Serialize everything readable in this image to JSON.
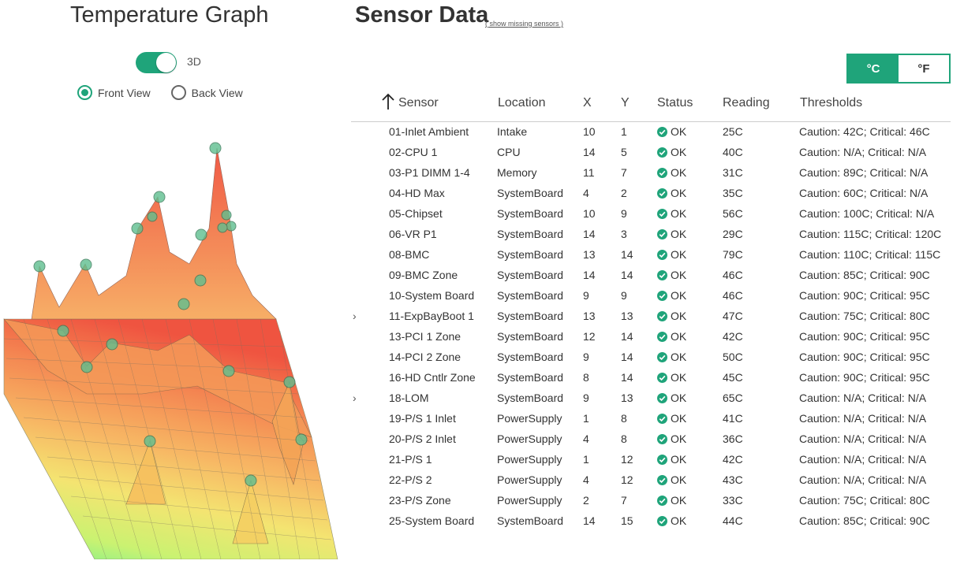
{
  "graph": {
    "title": "Temperature Graph",
    "toggle_label": "3D",
    "toggle_on": true,
    "radio_front": "Front View",
    "radio_back": "Back View",
    "selected_view": "Front View"
  },
  "sensor_panel": {
    "title": "Sensor Data",
    "missing_link": "( show missing sensors )",
    "unit_celsius": "°C",
    "unit_fahrenheit": "°F",
    "active_unit": "°C"
  },
  "table": {
    "headers": {
      "sensor": "Sensor",
      "location": "Location",
      "x": "X",
      "y": "Y",
      "status": "Status",
      "reading": "Reading",
      "thresholds": "Thresholds"
    },
    "sort_column": "Sensor",
    "sort_direction": "ascending",
    "rows": [
      {
        "sensor": "01-Inlet Ambient",
        "location": "Intake",
        "x": "10",
        "y": "1",
        "status": "OK",
        "reading": "25C",
        "thresholds": "Caution: 42C; Critical: 46C"
      },
      {
        "sensor": "02-CPU 1",
        "location": "CPU",
        "x": "14",
        "y": "5",
        "status": "OK",
        "reading": "40C",
        "thresholds": "Caution: N/A; Critical: N/A"
      },
      {
        "sensor": "03-P1 DIMM 1-4",
        "location": "Memory",
        "x": "11",
        "y": "7",
        "status": "OK",
        "reading": "31C",
        "thresholds": "Caution: 89C; Critical: N/A"
      },
      {
        "sensor": "04-HD Max",
        "location": "SystemBoard",
        "x": "4",
        "y": "2",
        "status": "OK",
        "reading": "35C",
        "thresholds": "Caution: 60C; Critical: N/A"
      },
      {
        "sensor": "05-Chipset",
        "location": "SystemBoard",
        "x": "10",
        "y": "9",
        "status": "OK",
        "reading": "56C",
        "thresholds": "Caution: 100C; Critical: N/A"
      },
      {
        "sensor": "06-VR P1",
        "location": "SystemBoard",
        "x": "14",
        "y": "3",
        "status": "OK",
        "reading": "29C",
        "thresholds": "Caution: 115C; Critical: 120C"
      },
      {
        "sensor": "08-BMC",
        "location": "SystemBoard",
        "x": "13",
        "y": "14",
        "status": "OK",
        "reading": "79C",
        "thresholds": "Caution: 110C; Critical: 115C"
      },
      {
        "sensor": "09-BMC Zone",
        "location": "SystemBoard",
        "x": "14",
        "y": "14",
        "status": "OK",
        "reading": "46C",
        "thresholds": "Caution: 85C; Critical: 90C"
      },
      {
        "sensor": "10-System Board",
        "location": "SystemBoard",
        "x": "9",
        "y": "9",
        "status": "OK",
        "reading": "46C",
        "thresholds": "Caution: 90C; Critical: 95C"
      },
      {
        "sensor": "11-ExpBayBoot 1",
        "location": "SystemBoard",
        "x": "13",
        "y": "13",
        "status": "OK",
        "reading": "47C",
        "thresholds": "Caution: 75C; Critical: 80C",
        "expander": "›"
      },
      {
        "sensor": "13-PCI 1 Zone",
        "location": "SystemBoard",
        "x": "12",
        "y": "14",
        "status": "OK",
        "reading": "42C",
        "thresholds": "Caution: 90C; Critical: 95C"
      },
      {
        "sensor": "14-PCI 2 Zone",
        "location": "SystemBoard",
        "x": "9",
        "y": "14",
        "status": "OK",
        "reading": "50C",
        "thresholds": "Caution: 90C; Critical: 95C"
      },
      {
        "sensor": "16-HD Cntlr Zone",
        "location": "SystemBoard",
        "x": "8",
        "y": "14",
        "status": "OK",
        "reading": "45C",
        "thresholds": "Caution: 90C; Critical: 95C"
      },
      {
        "sensor": "18-LOM",
        "location": "SystemBoard",
        "x": "9",
        "y": "13",
        "status": "OK",
        "reading": "65C",
        "thresholds": "Caution: N/A; Critical: N/A",
        "expander": "›"
      },
      {
        "sensor": "19-P/S 1 Inlet",
        "location": "PowerSupply",
        "x": "1",
        "y": "8",
        "status": "OK",
        "reading": "41C",
        "thresholds": "Caution: N/A; Critical: N/A"
      },
      {
        "sensor": "20-P/S 2 Inlet",
        "location": "PowerSupply",
        "x": "4",
        "y": "8",
        "status": "OK",
        "reading": "36C",
        "thresholds": "Caution: N/A; Critical: N/A"
      },
      {
        "sensor": "21-P/S 1",
        "location": "PowerSupply",
        "x": "1",
        "y": "12",
        "status": "OK",
        "reading": "42C",
        "thresholds": "Caution: N/A; Critical: N/A"
      },
      {
        "sensor": "22-P/S 2",
        "location": "PowerSupply",
        "x": "4",
        "y": "12",
        "status": "OK",
        "reading": "43C",
        "thresholds": "Caution: N/A; Critical: N/A"
      },
      {
        "sensor": "23-P/S Zone",
        "location": "PowerSupply",
        "x": "2",
        "y": "7",
        "status": "OK",
        "reading": "33C",
        "thresholds": "Caution: 75C; Critical: 80C"
      },
      {
        "sensor": "25-System Board",
        "location": "SystemBoard",
        "x": "14",
        "y": "15",
        "status": "OK",
        "reading": "44C",
        "thresholds": "Caution: 85C; Critical: 90C"
      }
    ]
  },
  "colors": {
    "accent": "#1fa47a",
    "hot": "#ef4b36",
    "warm": "#f5a05a",
    "cool": "#f3e46a",
    "cold": "#7ee87a"
  }
}
